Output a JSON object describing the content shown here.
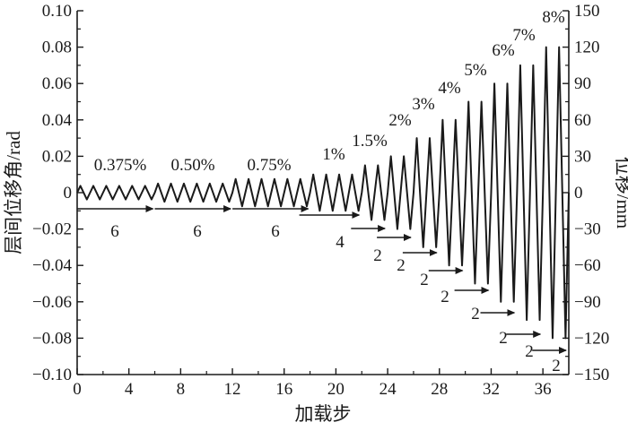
{
  "chart_data": {
    "type": "line",
    "title": "",
    "xlabel": "加载步",
    "ylabel": "层间位移角/rad",
    "y2label": "位移/mm",
    "xlim": [
      0,
      38
    ],
    "ylim": [
      -0.1,
      0.1
    ],
    "y2lim": [
      -150,
      150
    ],
    "grid": false,
    "x_ticks": [
      "0",
      "4",
      "8",
      "12",
      "16",
      "20",
      "24",
      "28",
      "32",
      "36"
    ],
    "y_ticks": [
      "-0.10",
      "-0.08",
      "-0.06",
      "-0.04",
      "-0.02",
      "0",
      "0.02",
      "0.04",
      "0.06",
      "0.08",
      "0.10"
    ],
    "y2_ticks": [
      "-150",
      "-120",
      "-90",
      "-60",
      "-30",
      "0",
      "30",
      "60",
      "90",
      "120",
      "150"
    ],
    "series": [
      {
        "values": [
          {
            "drift": 0.00375,
            "cycles": 6
          },
          {
            "drift": 0.005,
            "cycles": 6
          },
          {
            "drift": 0.0075,
            "cycles": 6
          },
          {
            "drift": 0.01,
            "cycles": 4
          },
          {
            "drift": 0.015,
            "cycles": 2
          },
          {
            "drift": 0.02,
            "cycles": 2
          },
          {
            "drift": 0.03,
            "cycles": 2
          },
          {
            "drift": 0.04,
            "cycles": 2
          },
          {
            "drift": 0.05,
            "cycles": 2
          },
          {
            "drift": 0.06,
            "cycles": 2
          },
          {
            "drift": 0.07,
            "cycles": 2
          },
          {
            "drift": 0.08,
            "cycles": 2
          }
        ]
      }
    ],
    "annotations": {
      "level_labels": [
        "0.375%",
        "0.50%",
        "0.75%",
        "1%",
        "1.5%",
        "2%",
        "3%",
        "4%",
        "5%",
        "6%",
        "7%",
        "8%"
      ],
      "cycle_labels": [
        "6",
        "6",
        "6",
        "4",
        "2",
        "2",
        "2",
        "2",
        "2",
        "2",
        "2",
        "2"
      ]
    }
  }
}
